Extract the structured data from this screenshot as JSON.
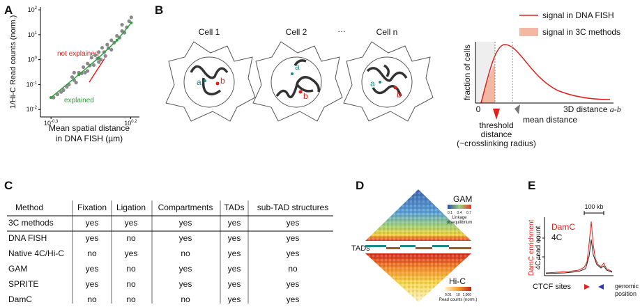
{
  "panel_labels": [
    "A",
    "B",
    "C",
    "D",
    "E"
  ],
  "chart_data": {
    "type": "scatter",
    "ylabel": "1/Hi-C Read counts (norm.)",
    "xlabel": [
      "Mean spatial distance",
      "in DNA FISH (µm)"
    ],
    "xscale": "log",
    "yscale": "log",
    "xlim": [
      0.43,
      1.8
    ],
    "ylim": [
      0.005,
      130
    ],
    "xticks": [
      {
        "value": 0.501,
        "label": "10",
        "exponent": "-0.3"
      },
      {
        "value": 1.585,
        "label": "10",
        "exponent": "0.2"
      }
    ],
    "yticks": [
      {
        "value": 100,
        "label": "10",
        "exponent": "2"
      },
      {
        "value": 10,
        "label": "10",
        "exponent": "1"
      },
      {
        "value": 1,
        "label": "10",
        "exponent": "0"
      },
      {
        "value": 0.1,
        "label": "10",
        "exponent": "-1"
      },
      {
        "value": 0.01,
        "label": "10",
        "exponent": "-2"
      }
    ],
    "series": [
      {
        "color": "#8a8a8a",
        "x": [
          0.52,
          0.55,
          0.58,
          0.6,
          0.63,
          0.65,
          0.68,
          0.7,
          0.72,
          0.75,
          0.78,
          0.8,
          0.82,
          0.85,
          0.88,
          0.9,
          0.93,
          0.95,
          0.98,
          1.0,
          1.03,
          1.05,
          1.08,
          1.1,
          1.13,
          1.15,
          1.2,
          1.25,
          1.3,
          1.35,
          1.4,
          1.45,
          1.5,
          1.55,
          1.6,
          0.7,
          0.85,
          1.0,
          1.2,
          1.4
        ],
        "values": [
          0.03,
          0.04,
          0.05,
          0.06,
          0.08,
          0.1,
          0.2,
          0.15,
          0.12,
          0.3,
          0.28,
          0.5,
          0.3,
          0.7,
          0.58,
          1.2,
          0.6,
          1.5,
          1.1,
          2,
          1.0,
          3,
          2,
          1.4,
          4,
          2.9,
          6,
          4.8,
          9,
          7.6,
          14,
          12,
          20,
          35,
          50,
          0.3,
          0.35,
          0.8,
          2.5,
          25
        ]
      },
      {
        "color": "#2e9e3e",
        "x": [
          0.5,
          0.75,
          1.0,
          1.3,
          1.6
        ],
        "values": [
          0.03,
          0.25,
          1.2,
          6,
          30
        ]
      }
    ],
    "annotations": [
      {
        "text": "not explained",
        "color": "#e0201b"
      },
      {
        "text": "explained",
        "color": "#2e9e3e"
      }
    ]
  },
  "panel_b": {
    "cells": [
      "Cell 1",
      "Cell 2",
      "Cell n"
    ],
    "ellipsis": "…",
    "loci": [
      "a",
      "b"
    ],
    "legend": [
      "signal in DNA FISH",
      "signal in 3C methods"
    ],
    "y_label": "fraction of cells",
    "origin": 0,
    "x_label": "3D distance",
    "x_label_var": "a-b",
    "threshold": [
      "threshold",
      "distance",
      "(~crosslinking radius)"
    ],
    "mean": "mean distance"
  },
  "table": {
    "header": [
      "Method",
      "Fixation",
      "Ligation",
      "Compartments",
      "TADs",
      "sub-TAD structures"
    ],
    "rows": [
      [
        "3C methods",
        "yes",
        "yes",
        "yes",
        "yes",
        "yes"
      ],
      [
        "DNA FISH",
        "yes",
        "no",
        "yes",
        "yes",
        "yes"
      ],
      [
        "Native 4C/Hi-C",
        "no",
        "yes",
        "no",
        "yes",
        "yes"
      ],
      [
        "GAM",
        "yes",
        "no",
        "yes",
        "yes",
        "no"
      ],
      [
        "SPRITE",
        "yes",
        "no",
        "yes",
        "yes",
        "yes"
      ],
      [
        "DamC",
        "no",
        "no",
        "no",
        "yes",
        "yes"
      ]
    ]
  },
  "panel_d": {
    "gam": "GAM",
    "gam_ticks": [
      0.1,
      0.4,
      0.7
    ],
    "gam_scale_label": [
      "Linkage",
      "disequilibrium"
    ],
    "tads": "TADs",
    "hic": "Hi-C",
    "hic_ticks": [
      0.01,
      10,
      {
        "value": 1000,
        "label": "1,000"
      }
    ],
    "hic_scale_label": "Read counts (norm.)"
  },
  "panel_e": {
    "scale_bar": "100 kb",
    "y_labels": [
      "DamC enrichment",
      "4C read count"
    ],
    "legend": [
      "DamC",
      "4C"
    ],
    "yticks": [
      2,
      1
    ],
    "ctcf": "CTCF sites",
    "genomic": [
      "genomic",
      "position"
    ]
  }
}
